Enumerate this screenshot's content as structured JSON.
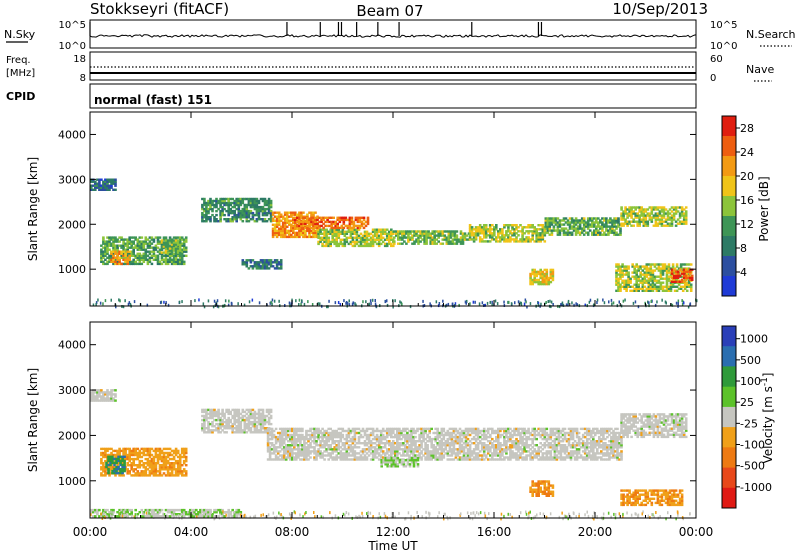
{
  "header": {
    "station": "Stokkseyri (fitACF)",
    "beam": "Beam 07",
    "date": "10/Sep/2013"
  },
  "strip_nsky": {
    "label": "N.Sky",
    "ticks_left": [
      "10^5",
      "10^0"
    ],
    "ticks_right": [
      "10^5",
      "10^0"
    ],
    "right_label": "N.Search"
  },
  "strip_freq": {
    "label_line1": "Freq.",
    "label_line2": "[MHz]",
    "ticks_left": [
      "18",
      "8"
    ],
    "ticks_right": [
      "60",
      "0"
    ],
    "right_label": "Nave"
  },
  "strip_cpid": {
    "label": "CPID",
    "value": "normal (fast) 151"
  },
  "colors": {
    "power": [
      "#1f3bd6",
      "#2c4fa0",
      "#2d7a65",
      "#3e9556",
      "#8cc43a",
      "#f0c419",
      "#f39a13",
      "#ee5e10",
      "#e01e10"
    ],
    "velocity": [
      "#2a3fb8",
      "#2a6eb0",
      "#2f9a3a",
      "#5cc22a",
      "#c6c6c0",
      "#f0a019",
      "#ee7a12",
      "#e8481a",
      "#e01a14"
    ],
    "ground": "#c6c6c0"
  },
  "chart_data": [
    {
      "type": "heatmap",
      "name": "power",
      "xlabel": "Time UT",
      "ylabel": "Slant Range [km]",
      "xlim": [
        0,
        24
      ],
      "ylim": [
        180,
        4500
      ],
      "xticks": [
        "00:00",
        "04:00",
        "08:00",
        "12:00",
        "16:00",
        "20:00",
        "00:00"
      ],
      "yticks": [
        1000,
        2000,
        3000,
        4000
      ],
      "colorbar": {
        "label": "Power [dB]",
        "ticks": [
          "4",
          "8",
          "12",
          "16",
          "20",
          "24",
          "28"
        ],
        "range": [
          0,
          30
        ]
      },
      "bands": [
        {
          "t0": 0.0,
          "t1": 1.0,
          "r0": 2750,
          "r1": 3000,
          "level": 7
        },
        {
          "t0": 0.4,
          "t1": 3.8,
          "r0": 1100,
          "r1": 1700,
          "level": 12
        },
        {
          "t0": 0.8,
          "t1": 1.6,
          "r0": 1100,
          "r1": 1400,
          "level": 22
        },
        {
          "t0": 2.8,
          "t1": 3.6,
          "r0": 1350,
          "r1": 1650,
          "level": 14
        },
        {
          "t0": 4.4,
          "t1": 7.2,
          "r0": 2050,
          "r1": 2550,
          "level": 10
        },
        {
          "t0": 6.0,
          "t1": 7.6,
          "r0": 1000,
          "r1": 1200,
          "level": 8
        },
        {
          "t0": 7.2,
          "t1": 9.0,
          "r0": 1700,
          "r1": 2250,
          "level": 22
        },
        {
          "t0": 9.0,
          "t1": 12.0,
          "r0": 1500,
          "r1": 1900,
          "level": 16
        },
        {
          "t0": 12.0,
          "t1": 15.0,
          "r0": 1550,
          "r1": 1850,
          "level": 14
        },
        {
          "t0": 15.0,
          "t1": 18.0,
          "r0": 1600,
          "r1": 2000,
          "level": 16
        },
        {
          "t0": 18.0,
          "t1": 21.0,
          "r0": 1750,
          "r1": 2150,
          "level": 13
        },
        {
          "t0": 21.0,
          "t1": 23.6,
          "r0": 1950,
          "r1": 2400,
          "level": 16
        },
        {
          "t0": 17.4,
          "t1": 18.3,
          "r0": 650,
          "r1": 1000,
          "level": 18
        },
        {
          "t0": 20.8,
          "t1": 23.8,
          "r0": 500,
          "r1": 1100,
          "level": 16
        },
        {
          "t0": 23.0,
          "t1": 23.8,
          "r0": 700,
          "r1": 1000,
          "level": 26
        },
        {
          "t0": 8.0,
          "t1": 11.0,
          "r0": 1900,
          "r1": 2150,
          "level": 24
        }
      ]
    },
    {
      "type": "heatmap",
      "name": "velocity",
      "xlabel": "Time UT",
      "ylabel": "Slant Range [km]",
      "xlim": [
        0,
        24
      ],
      "ylim": [
        180,
        4500
      ],
      "xticks": [
        "00:00",
        "04:00",
        "08:00",
        "12:00",
        "16:00",
        "20:00",
        "00:00"
      ],
      "yticks": [
        1000,
        2000,
        3000,
        4000
      ],
      "colorbar": {
        "label": "Velocity [m s-1]",
        "ticks": [
          "1000",
          "500",
          "100",
          "25",
          "-25",
          "-100",
          "-500",
          "-1000"
        ],
        "range": [
          -1200,
          1200
        ]
      },
      "bands": [
        {
          "t0": 0.0,
          "t1": 1.0,
          "r0": 2750,
          "r1": 3000,
          "level": 0
        },
        {
          "t0": 0.4,
          "t1": 3.8,
          "r0": 1100,
          "r1": 1700,
          "level": -300
        },
        {
          "t0": 0.6,
          "t1": 1.4,
          "r0": 1150,
          "r1": 1550,
          "level": 600
        },
        {
          "t0": 4.4,
          "t1": 7.2,
          "r0": 2050,
          "r1": 2550,
          "level": 0
        },
        {
          "t0": 7.0,
          "t1": 21.0,
          "r0": 1450,
          "r1": 2150,
          "level": 0
        },
        {
          "t0": 21.0,
          "t1": 23.6,
          "r0": 1950,
          "r1": 2450,
          "level": 0
        },
        {
          "t0": 11.5,
          "t1": 13.0,
          "r0": 1300,
          "r1": 1500,
          "level": 150
        },
        {
          "t0": 17.4,
          "t1": 18.3,
          "r0": 650,
          "r1": 1000,
          "level": -400
        },
        {
          "t0": 21.0,
          "t1": 23.4,
          "r0": 450,
          "r1": 800,
          "level": -350
        },
        {
          "t0": 0.0,
          "t1": 6.0,
          "r0": 200,
          "r1": 350,
          "level": 120
        }
      ]
    }
  ]
}
